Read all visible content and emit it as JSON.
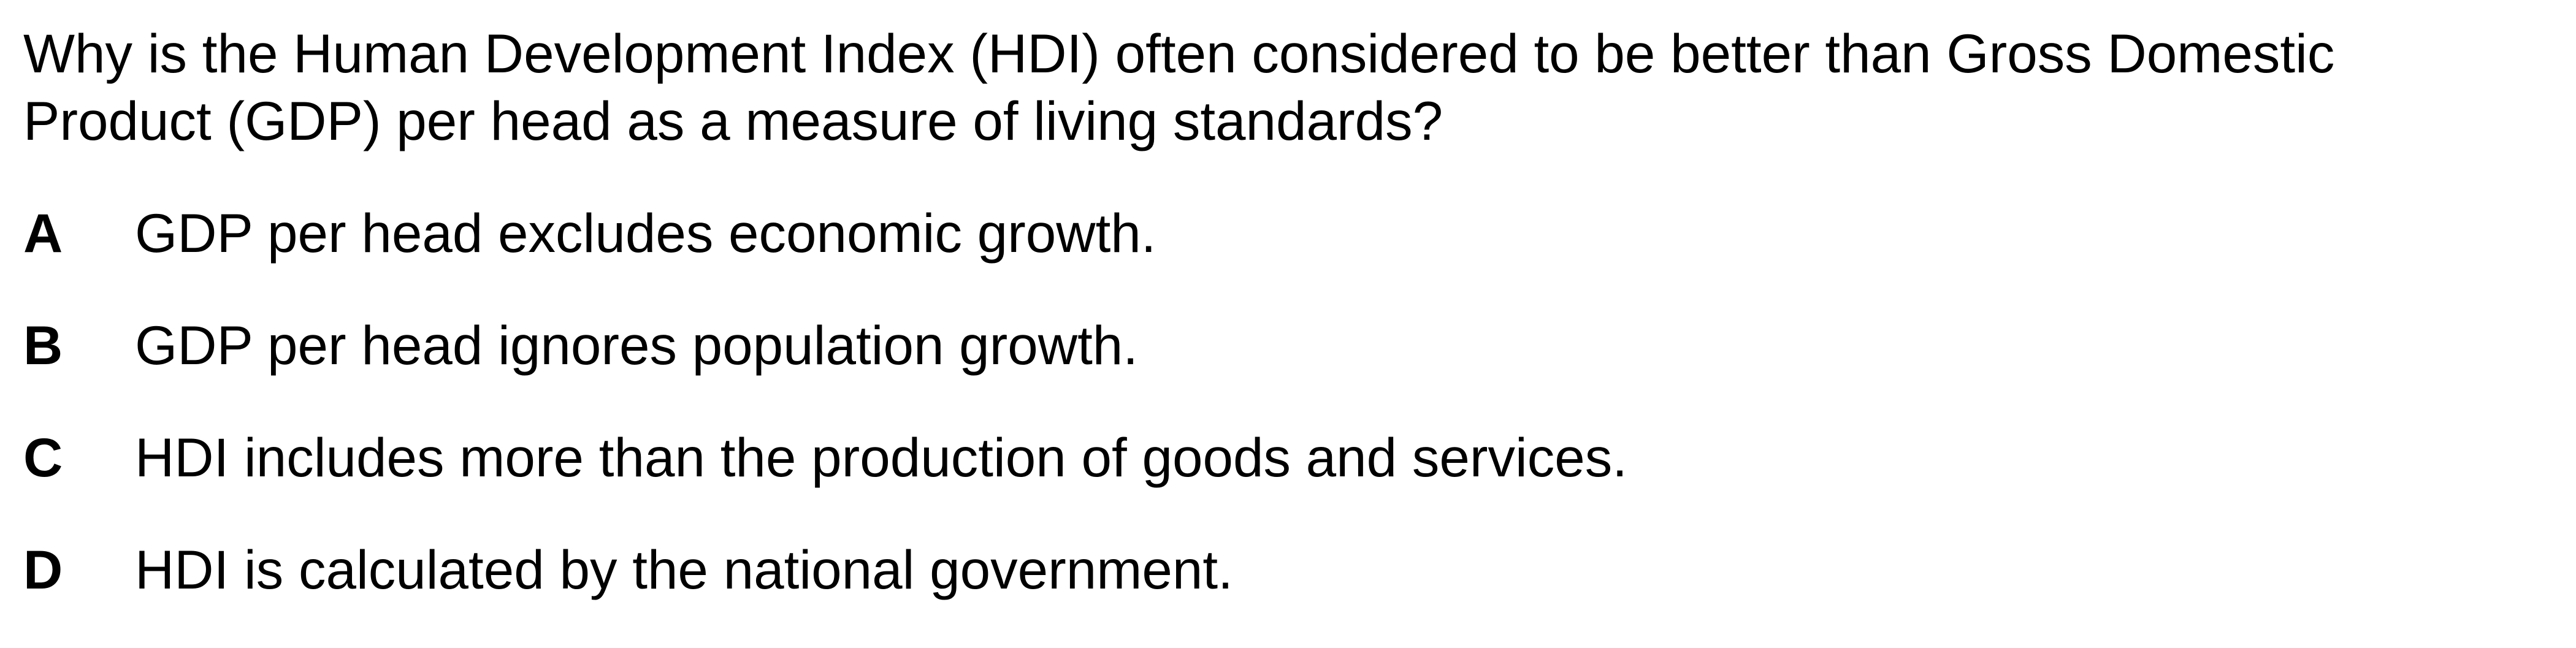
{
  "question": {
    "line1": "Why is the Human Development Index (HDI) often considered to be better than Gross Domestic",
    "line2": "Product (GDP) per head as a measure of living standards?"
  },
  "options": [
    {
      "letter": "A",
      "text": "GDP per head excludes economic growth."
    },
    {
      "letter": "B",
      "text": "GDP per head ignores population growth."
    },
    {
      "letter": "C",
      "text": "HDI includes more than the production of goods and services."
    },
    {
      "letter": "D",
      "text": "HDI is calculated by the national government."
    }
  ]
}
